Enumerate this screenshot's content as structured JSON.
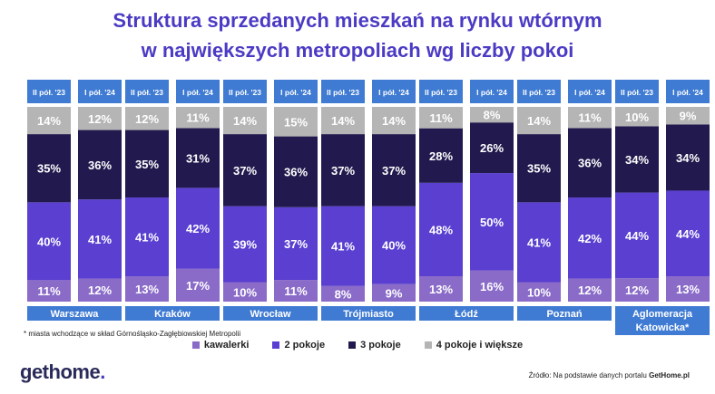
{
  "title_line1": "Struktura sprzedanych mieszkań na rynku wtórnym",
  "title_line2": "w największych metropoliach wg liczby pokoi",
  "note": "* miasta wchodzące w skład Górnośląsko-Zagłębiowskiej Metropolii",
  "source_prefix": "Źródło: Na podstawie danych portalu ",
  "source_brand": "GetHome.pl",
  "logo_main": "gethome",
  "logo_dot": ".",
  "colors": {
    "kawalerki": "#8a6bc8",
    "2 pokoje": "#5a3fd0",
    "3 pokoje": "#221a4e",
    "4 pokoje i większe": "#b5b5b5",
    "header_bg": "#3f7bd3",
    "title": "#4b3bc4"
  },
  "legend": [
    "kawalerki",
    "2 pokoje",
    "3 pokoje",
    "4 pokoje i większe"
  ],
  "chart_data": {
    "type": "bar",
    "stacked": true,
    "periods": [
      "II pół. '23",
      "I pół. '24"
    ],
    "series_names": [
      "kawalerki",
      "2 pokoje",
      "3 pokoje",
      "4 pokoje i większe"
    ],
    "groups": [
      {
        "city": [
          "Warszawa"
        ],
        "bars": [
          [
            11,
            40,
            35,
            14
          ],
          [
            12,
            41,
            36,
            12
          ]
        ]
      },
      {
        "city": [
          "Kraków"
        ],
        "bars": [
          [
            13,
            41,
            35,
            12
          ],
          [
            17,
            42,
            31,
            11
          ]
        ]
      },
      {
        "city": [
          "Wrocław"
        ],
        "bars": [
          [
            10,
            39,
            37,
            14
          ],
          [
            11,
            37,
            36,
            15
          ]
        ]
      },
      {
        "city": [
          "Trójmiasto"
        ],
        "bars": [
          [
            8,
            41,
            37,
            14
          ],
          [
            9,
            40,
            37,
            14
          ]
        ]
      },
      {
        "city": [
          "Łódź"
        ],
        "bars": [
          [
            13,
            48,
            28,
            11
          ],
          [
            16,
            50,
            26,
            8
          ]
        ]
      },
      {
        "city": [
          "Poznań"
        ],
        "bars": [
          [
            10,
            41,
            35,
            14
          ],
          [
            12,
            42,
            36,
            11
          ]
        ]
      },
      {
        "city": [
          "Aglomeracja",
          "Katowicka*"
        ],
        "bars": [
          [
            12,
            44,
            34,
            10
          ],
          [
            13,
            44,
            34,
            9
          ]
        ]
      }
    ]
  }
}
